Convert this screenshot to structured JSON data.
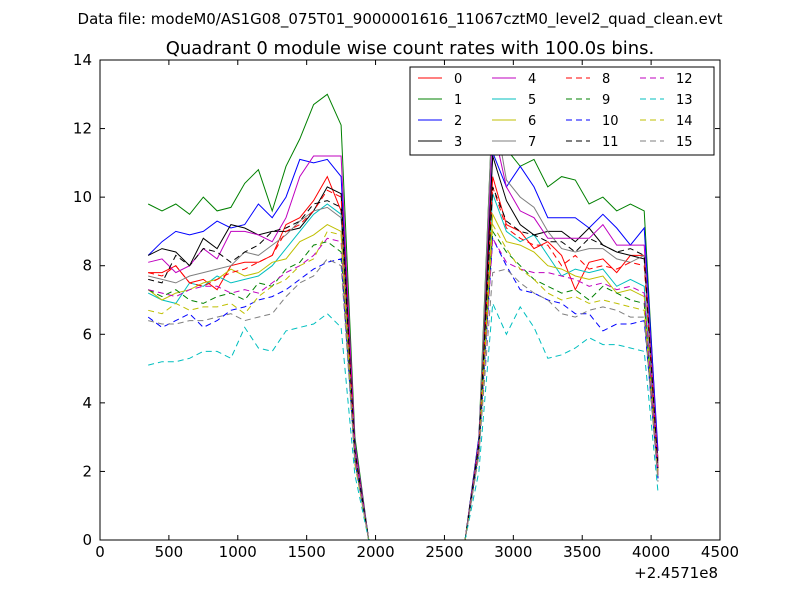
{
  "chart_data": {
    "type": "line",
    "suptitle": "Data file: modeM0/AS1G08_075T01_9000001616_11067cztM0_level2_quad_clean.evt",
    "title": "Quadrant 0 module wise count rates with 100.0s bins.",
    "xlabel": "",
    "ylabel": "",
    "x_offset_label": "+2.4571e8",
    "xlim": [
      0,
      4500
    ],
    "ylim": [
      0,
      14
    ],
    "xticks": [
      0,
      500,
      1000,
      1500,
      2000,
      2500,
      3000,
      3500,
      4000,
      4500
    ],
    "yticks": [
      0,
      2,
      4,
      6,
      8,
      10,
      12,
      14
    ],
    "grid": false,
    "legend": {
      "placement": "top-right",
      "columns": 4
    },
    "x": [
      350,
      450,
      550,
      650,
      750,
      850,
      950,
      1050,
      1150,
      1250,
      1350,
      1450,
      1550,
      1650,
      1750,
      1850,
      1950,
      2050,
      2150,
      2250,
      2350,
      2450,
      2550,
      2650,
      2750,
      2850,
      2950,
      3050,
      3150,
      3250,
      3350,
      3450,
      3550,
      3650,
      3750,
      3850,
      3950,
      4050
    ],
    "series": [
      {
        "name": "0",
        "color": "#ff0000",
        "dash": "solid",
        "values": [
          7.8,
          7.8,
          8.0,
          7.5,
          7.6,
          7.3,
          8.0,
          8.1,
          8.1,
          8.3,
          9.2,
          9.4,
          9.9,
          10.6,
          9.6,
          2.5,
          0,
          0,
          0,
          0,
          0,
          0,
          0,
          0,
          2.8,
          10.6,
          9.2,
          9.0,
          8.5,
          8.7,
          8.3,
          7.3,
          8.1,
          8.2,
          7.8,
          8.3,
          8.3,
          2.0
        ]
      },
      {
        "name": "1",
        "color": "#008000",
        "dash": "solid",
        "values": [
          9.8,
          9.6,
          9.8,
          9.5,
          10.0,
          9.6,
          9.7,
          10.4,
          10.8,
          9.6,
          10.9,
          11.7,
          12.7,
          13.0,
          12.1,
          3.0,
          0,
          0,
          0,
          0,
          0,
          0,
          0,
          0,
          3.0,
          12.8,
          11.4,
          10.9,
          11.1,
          10.3,
          10.6,
          10.5,
          9.8,
          10.0,
          9.6,
          9.8,
          9.6,
          2.3
        ]
      },
      {
        "name": "2",
        "color": "#0000ff",
        "dash": "solid",
        "values": [
          8.3,
          8.7,
          9.0,
          8.9,
          9.0,
          9.3,
          9.1,
          9.2,
          9.8,
          9.4,
          10.0,
          11.1,
          11.0,
          11.1,
          10.6,
          2.8,
          0,
          0,
          0,
          0,
          0,
          0,
          0,
          0,
          3.0,
          11.3,
          10.3,
          10.9,
          10.3,
          9.4,
          9.4,
          9.4,
          9.1,
          9.5,
          9.1,
          8.6,
          9.1,
          2.6
        ]
      },
      {
        "name": "3",
        "color": "#000000",
        "dash": "solid",
        "values": [
          8.3,
          8.5,
          8.4,
          8.0,
          8.8,
          8.5,
          9.2,
          9.1,
          8.9,
          9.0,
          9.0,
          9.1,
          9.6,
          10.3,
          10.1,
          2.7,
          0,
          0,
          0,
          0,
          0,
          0,
          0,
          0,
          2.9,
          11.2,
          9.9,
          9.2,
          8.9,
          9.0,
          9.0,
          8.7,
          9.1,
          8.6,
          8.4,
          8.3,
          8.2,
          2.1
        ]
      },
      {
        "name": "4",
        "color": "#bf00bf",
        "dash": "solid",
        "values": [
          8.1,
          8.2,
          7.8,
          8.0,
          8.5,
          8.2,
          9.0,
          9.0,
          8.9,
          8.7,
          9.4,
          10.6,
          11.2,
          11.2,
          11.2,
          2.8,
          0,
          0,
          0,
          0,
          0,
          0,
          0,
          0,
          2.9,
          12.1,
          10.3,
          9.6,
          9.4,
          8.8,
          8.8,
          8.8,
          8.8,
          9.2,
          8.6,
          8.6,
          8.6,
          2.3
        ]
      },
      {
        "name": "5",
        "color": "#00bfbf",
        "dash": "solid",
        "values": [
          7.2,
          7.0,
          6.9,
          7.5,
          7.4,
          7.7,
          7.5,
          7.6,
          7.7,
          8.0,
          8.5,
          9.0,
          9.5,
          9.8,
          9.5,
          2.5,
          0,
          0,
          0,
          0,
          0,
          0,
          0,
          0,
          2.7,
          10.1,
          9.0,
          8.7,
          8.9,
          8.3,
          7.7,
          7.9,
          7.8,
          7.9,
          7.4,
          7.6,
          7.4,
          1.9
        ]
      },
      {
        "name": "6",
        "color": "#bfbf00",
        "dash": "solid",
        "values": [
          7.3,
          7.0,
          7.2,
          7.3,
          7.5,
          7.6,
          7.9,
          7.7,
          7.8,
          8.1,
          8.2,
          8.7,
          8.9,
          9.2,
          9.0,
          2.4,
          0,
          0,
          0,
          0,
          0,
          0,
          0,
          0,
          2.6,
          9.5,
          8.7,
          8.6,
          8.4,
          8.0,
          7.9,
          7.7,
          7.6,
          7.7,
          7.2,
          7.3,
          7.1,
          1.9
        ]
      },
      {
        "name": "7",
        "color": "#7f7f7f",
        "dash": "solid",
        "values": [
          7.7,
          7.6,
          7.5,
          7.7,
          7.8,
          7.9,
          8.0,
          8.4,
          8.3,
          8.6,
          8.9,
          9.3,
          9.6,
          9.7,
          9.4,
          2.6,
          0,
          0,
          0,
          0,
          0,
          0,
          0,
          0,
          2.8,
          12.8,
          10.5,
          10.0,
          9.7,
          9.0,
          8.5,
          8.4,
          8.5,
          8.5,
          8.2,
          8.1,
          8.3,
          2.1
        ]
      },
      {
        "name": "8",
        "color": "#ff0000",
        "dash": "dashed",
        "values": [
          7.8,
          7.7,
          8.0,
          7.5,
          7.4,
          7.6,
          7.8,
          7.9,
          8.1,
          8.3,
          9.0,
          9.2,
          9.6,
          10.2,
          10.0,
          2.5,
          0,
          0,
          0,
          0,
          0,
          0,
          0,
          0,
          2.7,
          10.3,
          9.1,
          8.8,
          8.6,
          8.6,
          8.0,
          8.3,
          7.9,
          8.0,
          7.9,
          8.1,
          8.0,
          2.1
        ]
      },
      {
        "name": "9",
        "color": "#008000",
        "dash": "dashed",
        "values": [
          7.3,
          7.1,
          7.3,
          7.0,
          6.9,
          7.1,
          7.2,
          7.0,
          7.5,
          7.4,
          7.9,
          8.1,
          8.6,
          8.7,
          8.4,
          2.3,
          0,
          0,
          0,
          0,
          0,
          0,
          0,
          0,
          2.6,
          9.0,
          8.4,
          8.0,
          7.6,
          7.4,
          7.2,
          7.3,
          7.0,
          7.4,
          7.2,
          7.0,
          6.9,
          1.8
        ]
      },
      {
        "name": "10",
        "color": "#0000ff",
        "dash": "dashed",
        "values": [
          6.5,
          6.2,
          6.4,
          6.6,
          6.2,
          6.4,
          6.7,
          6.8,
          7.0,
          7.1,
          7.3,
          7.6,
          7.9,
          8.1,
          8.2,
          2.3,
          0,
          0,
          0,
          0,
          0,
          0,
          0,
          0,
          2.5,
          8.8,
          8.0,
          7.3,
          7.2,
          7.0,
          6.9,
          6.6,
          6.6,
          6.1,
          6.3,
          6.3,
          6.4,
          1.8
        ]
      },
      {
        "name": "11",
        "color": "#000000",
        "dash": "dashed",
        "values": [
          7.6,
          7.5,
          8.3,
          8.0,
          8.5,
          8.4,
          8.1,
          8.4,
          8.6,
          9.0,
          9.1,
          9.3,
          9.8,
          9.9,
          9.7,
          2.6,
          0,
          0,
          0,
          0,
          0,
          0,
          0,
          0,
          2.8,
          10.3,
          9.3,
          9.0,
          8.9,
          8.7,
          8.7,
          8.4,
          8.8,
          8.6,
          8.4,
          8.5,
          8.3,
          2.1
        ]
      },
      {
        "name": "12",
        "color": "#bf00bf",
        "dash": "dashed",
        "values": [
          7.3,
          7.2,
          7.1,
          7.3,
          7.4,
          7.4,
          7.2,
          7.3,
          7.2,
          7.5,
          7.8,
          8.0,
          8.3,
          8.8,
          8.7,
          2.4,
          0,
          0,
          0,
          0,
          0,
          0,
          0,
          0,
          2.6,
          8.8,
          8.1,
          7.9,
          7.8,
          7.8,
          7.7,
          7.6,
          7.4,
          7.5,
          7.3,
          7.4,
          7.2,
          1.9
        ]
      },
      {
        "name": "13",
        "color": "#00bfbf",
        "dash": "dashed",
        "values": [
          5.1,
          5.2,
          5.2,
          5.3,
          5.5,
          5.5,
          5.3,
          6.2,
          5.6,
          5.5,
          6.1,
          6.2,
          6.3,
          6.6,
          6.2,
          1.9,
          0,
          0,
          0,
          0,
          0,
          0,
          0,
          0,
          2.0,
          6.9,
          6.0,
          6.8,
          6.2,
          5.3,
          5.4,
          5.6,
          5.9,
          5.7,
          5.7,
          5.6,
          5.5,
          1.4
        ]
      },
      {
        "name": "14",
        "color": "#bfbf00",
        "dash": "dashed",
        "values": [
          6.7,
          6.6,
          6.9,
          6.7,
          6.8,
          6.8,
          6.9,
          6.6,
          7.1,
          7.4,
          7.6,
          8.0,
          8.2,
          9.0,
          8.9,
          2.2,
          0,
          0,
          0,
          0,
          0,
          0,
          0,
          0,
          2.5,
          9.2,
          8.5,
          7.9,
          7.6,
          7.2,
          7.0,
          7.1,
          6.9,
          7.0,
          6.9,
          6.8,
          6.7,
          1.8
        ]
      },
      {
        "name": "15",
        "color": "#7f7f7f",
        "dash": "dashed",
        "values": [
          6.4,
          6.3,
          6.3,
          6.4,
          6.4,
          6.5,
          6.6,
          6.4,
          6.5,
          6.6,
          7.1,
          7.5,
          7.7,
          8.2,
          8.0,
          2.3,
          0,
          0,
          0,
          0,
          0,
          0,
          0,
          0,
          2.5,
          7.8,
          7.9,
          7.5,
          7.2,
          7.0,
          6.6,
          6.5,
          6.7,
          6.8,
          6.7,
          6.5,
          6.5,
          1.7
        ]
      }
    ]
  }
}
